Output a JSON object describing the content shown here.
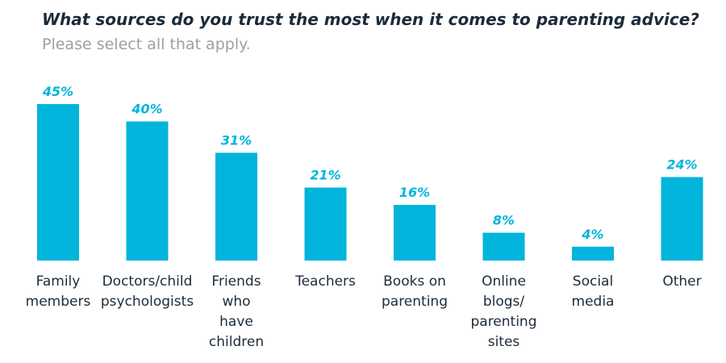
{
  "chart_data": {
    "type": "bar",
    "title": "What sources do you trust the most when it comes to parenting advice?",
    "subtitle": "Please select all that apply.",
    "categories": [
      [
        "Family",
        "members"
      ],
      [
        "Doctors/child",
        "psychologists"
      ],
      [
        "Friends",
        "who",
        "have",
        "children"
      ],
      [
        "Teachers"
      ],
      [
        "Books on",
        "parenting"
      ],
      [
        "Online",
        "blogs/",
        "parenting",
        "sites"
      ],
      [
        "Social",
        "media"
      ],
      [
        "Other"
      ]
    ],
    "values": [
      45,
      40,
      31,
      21,
      16,
      8,
      4,
      24
    ],
    "value_labels": [
      "45%",
      "40%",
      "31%",
      "21%",
      "16%",
      "8%",
      "4%",
      "24%"
    ],
    "unit": "%",
    "ylim": [
      0,
      45
    ],
    "grid": false,
    "legend": "none"
  },
  "colors": {
    "bar": "#00b4dc",
    "value_label": "#00b4dc",
    "title": "#1c2b3a",
    "subtitle": "#9aa0a6",
    "axis_text": "#1c2b3a"
  }
}
